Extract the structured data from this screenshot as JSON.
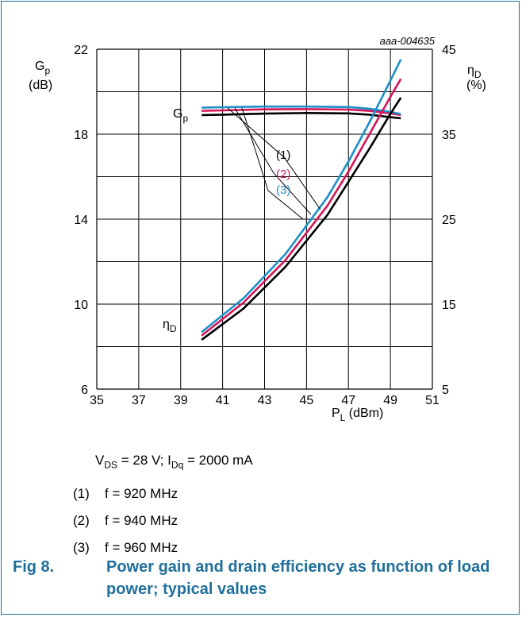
{
  "chart_data": {
    "type": "line",
    "id_label": "aaa-004635",
    "xlabel": "P",
    "xlabel_sub": "L",
    "xlabel_unit": " (dBm)",
    "xlim": [
      35,
      51
    ],
    "xticks": [
      "35",
      "37",
      "39",
      "41",
      "43",
      "45",
      "47",
      "49",
      "51"
    ],
    "ylim_left": [
      6,
      22
    ],
    "ylim_right": [
      5,
      45
    ],
    "yticks_left": [
      "6",
      "10",
      "14",
      "18",
      "22"
    ],
    "yticks_right": [
      "5",
      "15",
      "25",
      "35",
      "45"
    ],
    "ylabel_left": {
      "main": "G",
      "sub": "p",
      "unit": "(dB)"
    },
    "ylabel_right": {
      "main": "η",
      "sub": "D",
      "unit": "(%)"
    },
    "grid": true,
    "curve_labels": {
      "gp": {
        "main": "G",
        "sub": "p"
      },
      "eta": {
        "main": "η",
        "sub": "D"
      }
    },
    "legend_labels": [
      "(1)",
      "(2)",
      "(3)"
    ],
    "series": [
      {
        "name": "(1)",
        "color": "#000000",
        "axis": "left",
        "x": [
          40,
          41,
          43,
          45,
          47,
          48,
          49,
          49.5
        ],
        "y": [
          18.9,
          18.92,
          18.97,
          19.0,
          18.98,
          18.92,
          18.8,
          18.75
        ]
      },
      {
        "name": "(2)",
        "color": "#d4145a",
        "axis": "left",
        "x": [
          40,
          41,
          43,
          45,
          47,
          48,
          49,
          49.5
        ],
        "y": [
          19.1,
          19.12,
          19.17,
          19.18,
          19.16,
          19.1,
          18.98,
          18.9
        ]
      },
      {
        "name": "(3)",
        "color": "#1b8fc8",
        "axis": "left",
        "x": [
          40,
          41,
          43,
          45,
          47,
          48,
          49,
          49.5
        ],
        "y": [
          19.25,
          19.27,
          19.3,
          19.3,
          19.28,
          19.2,
          19.05,
          18.95
        ]
      },
      {
        "name": "(1)",
        "color": "#000000",
        "axis": "right",
        "x": [
          40,
          42,
          44,
          46,
          47,
          48,
          49,
          49.5
        ],
        "y": [
          10.8,
          14.5,
          19.4,
          25.5,
          29.4,
          33.3,
          37.4,
          39.3
        ]
      },
      {
        "name": "(2)",
        "color": "#d4145a",
        "axis": "right",
        "x": [
          40,
          42,
          44,
          46,
          47,
          48,
          49,
          49.5
        ],
        "y": [
          11.3,
          15.2,
          20.2,
          26.6,
          30.6,
          35.0,
          39.4,
          41.5
        ]
      },
      {
        "name": "(3)",
        "color": "#1b8fc8",
        "axis": "right",
        "x": [
          40,
          42,
          44,
          46,
          47,
          48,
          49,
          49.5
        ],
        "y": [
          11.7,
          15.7,
          20.9,
          27.6,
          31.8,
          36.4,
          41.3,
          43.8
        ]
      }
    ]
  },
  "conditions": {
    "vds": "V",
    "vds_sub": "DS",
    "vds_val": " = 28 V; I",
    "idq_sub": "Dq",
    "idq_val": " = 2000 mA"
  },
  "notes": [
    {
      "num": "(1)",
      "text": "f = 920 MHz"
    },
    {
      "num": "(2)",
      "text": "f = 940 MHz"
    },
    {
      "num": "(3)",
      "text": "f = 960 MHz"
    }
  ],
  "caption": {
    "label": "Fig 8.",
    "text": "Power gain and drain efficiency as function of load power; typical values"
  }
}
